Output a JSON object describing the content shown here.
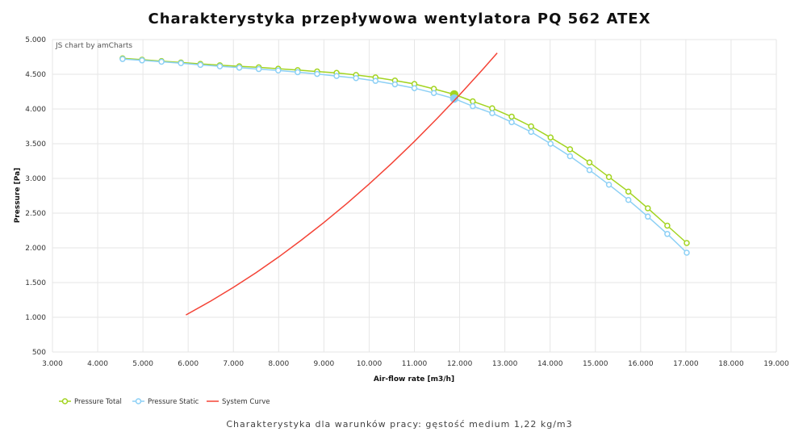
{
  "chart_data": {
    "type": "line",
    "title": "Charakterystyka przepływowa wentylatora PQ 562 ATEX",
    "subtitle": "Charakterystyka dla warunków pracy: gęstość medium 1,22 kg/m3",
    "credit": "JS chart by amCharts",
    "xlabel": "Air-flow rate [m3/h]",
    "ylabel": "Pressure [Pa]",
    "xlim": [
      3000,
      19000
    ],
    "ylim": [
      500,
      5000
    ],
    "x_ticks": [
      "3.000",
      "4.000",
      "5.000",
      "6.000",
      "7.000",
      "8.000",
      "9.000",
      "10.000",
      "11.000",
      "12.000",
      "13.000",
      "14.000",
      "15.000",
      "16.000",
      "17.000",
      "18.000",
      "19.000"
    ],
    "y_ticks": [
      "500",
      "1.000",
      "1.500",
      "2.000",
      "2.500",
      "3.000",
      "3.500",
      "4.000",
      "4.500",
      "5.000"
    ],
    "grid": true,
    "legend_position": "bottom-left",
    "x": [
      4550,
      4980,
      5410,
      5840,
      6270,
      6700,
      7130,
      7560,
      7990,
      8420,
      8850,
      9280,
      9710,
      10140,
      10570,
      11000,
      11430,
      11880,
      12290,
      12720,
      13150,
      13580,
      14010,
      14440,
      14870,
      15300,
      15730,
      16160,
      16590,
      17020
    ],
    "series": [
      {
        "name": "Pressure Total",
        "color": "#a3d421",
        "values": [
          4730,
          4710,
          4690,
          4670,
          4650,
          4630,
          4615,
          4600,
          4580,
          4560,
          4540,
          4520,
          4490,
          4455,
          4410,
          4360,
          4290,
          4210,
          4110,
          4010,
          3890,
          3750,
          3590,
          3420,
          3230,
          3020,
          2810,
          2570,
          2320,
          2070
        ],
        "highlight_index": 17
      },
      {
        "name": "Pressure Static",
        "color": "#8dd0f5",
        "values": [
          4720,
          4700,
          4680,
          4660,
          4635,
          4615,
          4595,
          4575,
          4555,
          4530,
          4505,
          4475,
          4445,
          4405,
          4355,
          4300,
          4230,
          4150,
          4040,
          3940,
          3810,
          3670,
          3500,
          3320,
          3120,
          2910,
          2690,
          2450,
          2200,
          1930
        ],
        "highlight_index": 17
      },
      {
        "name": "System Curve",
        "color": "#f44336",
        "x": [
          5950,
          6500,
          7000,
          7500,
          8000,
          8500,
          9000,
          9500,
          10000,
          10500,
          11000,
          11500,
          12000,
          12500,
          12830
        ],
        "values": [
          1034,
          1234,
          1431,
          1643,
          1869,
          2110,
          2365,
          2635,
          2920,
          3219,
          3533,
          3862,
          4205,
          4563,
          4807
        ]
      }
    ]
  }
}
